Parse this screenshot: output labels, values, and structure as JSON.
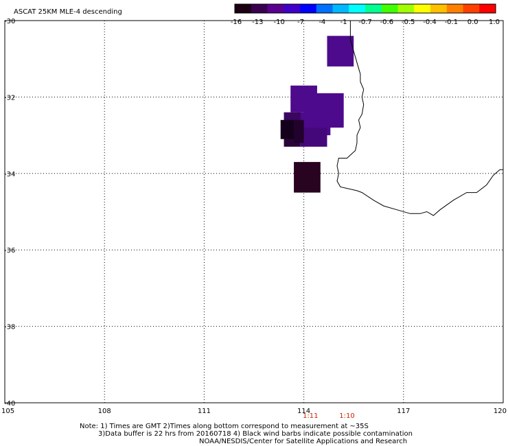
{
  "title": "ASCAT 25KM MLE-4 descending",
  "colorbar": {
    "labels": [
      "-16",
      "-13",
      "-10",
      "-7",
      "-4",
      "-1",
      "-0.7",
      "-0.6",
      "-0.5",
      "-0.4",
      "-0.1",
      "0.0",
      "1.0"
    ],
    "colors": [
      "#1a0010",
      "#3a0050",
      "#5a0090",
      "#4000c8",
      "#0000ff",
      "#0070ff",
      "#00b8ff",
      "#00ffff",
      "#00ff90",
      "#40ff00",
      "#a0ff00",
      "#ffff00",
      "#ffc000",
      "#ff8000",
      "#ff4000",
      "#ff0000"
    ]
  },
  "axes": {
    "lon_range": [
      105,
      120
    ],
    "lat_range": [
      -40,
      -30
    ],
    "x_ticks": [
      "105",
      "108",
      "111",
      "114",
      "117",
      "120"
    ],
    "x_tick_values": [
      105,
      108,
      111,
      114,
      117,
      120
    ],
    "y_ticks": [
      "-30",
      "-32",
      "-34",
      "-36",
      "-38",
      "-40"
    ],
    "y_tick_values": [
      -30,
      -32,
      -34,
      -36,
      -38,
      -40
    ],
    "grid": "dotted"
  },
  "pass_times": [
    {
      "lon": 114.2,
      "label": "1:11"
    },
    {
      "lon": 115.3,
      "label": "1:10"
    }
  ],
  "pass_time_color": "#cc2200",
  "cells": [
    {
      "lon0": 114.7,
      "lon1": 115.5,
      "lat0": -30.4,
      "lat1": -31.2,
      "color": "#4d0a8c"
    },
    {
      "lon0": 113.6,
      "lon1": 114.4,
      "lat0": -31.7,
      "lat1": -32.4,
      "color": "#4d0a8c"
    },
    {
      "lon0": 114.0,
      "lon1": 115.2,
      "lat0": -31.9,
      "lat1": -32.8,
      "color": "#4d0a8c"
    },
    {
      "lon0": 113.8,
      "lon1": 114.8,
      "lat0": -32.4,
      "lat1": -33.0,
      "color": "#4d0a8c"
    },
    {
      "lon0": 113.4,
      "lon1": 113.9,
      "lat0": -32.4,
      "lat1": -32.9,
      "color": "#3a0660"
    },
    {
      "lon0": 113.9,
      "lon1": 114.7,
      "lat0": -32.8,
      "lat1": -33.3,
      "color": "#45087a"
    },
    {
      "lon0": 113.4,
      "lon1": 113.9,
      "lat0": -32.9,
      "lat1": -33.3,
      "color": "#2a0438"
    },
    {
      "lon0": 113.3,
      "lon1": 113.7,
      "lat0": -32.6,
      "lat1": -33.1,
      "color": "#15001c"
    },
    {
      "lon0": 113.7,
      "lon1": 114.0,
      "lat0": -32.6,
      "lat1": -33.2,
      "color": "#22022c"
    },
    {
      "lon0": 113.7,
      "lon1": 114.5,
      "lat0": -33.7,
      "lat1": -34.5,
      "color": "#280420"
    }
  ],
  "coastline": [
    [
      115.4,
      -30.0
    ],
    [
      115.4,
      -30.5
    ],
    [
      115.5,
      -30.8
    ],
    [
      115.6,
      -31.1
    ],
    [
      115.7,
      -31.4
    ],
    [
      115.7,
      -31.6
    ],
    [
      115.8,
      -31.8
    ],
    [
      115.75,
      -32.0
    ],
    [
      115.8,
      -32.2
    ],
    [
      115.75,
      -32.45
    ],
    [
      115.65,
      -32.6
    ],
    [
      115.7,
      -32.8
    ],
    [
      115.6,
      -33.0
    ],
    [
      115.6,
      -33.2
    ],
    [
      115.55,
      -33.4
    ],
    [
      115.3,
      -33.6
    ],
    [
      115.05,
      -33.6
    ],
    [
      115.0,
      -33.8
    ],
    [
      115.05,
      -34.0
    ],
    [
      115.0,
      -34.2
    ],
    [
      115.1,
      -34.35
    ],
    [
      115.35,
      -34.4
    ],
    [
      115.6,
      -34.45
    ],
    [
      115.75,
      -34.5
    ],
    [
      116.1,
      -34.7
    ],
    [
      116.4,
      -34.85
    ],
    [
      116.8,
      -34.95
    ],
    [
      117.2,
      -35.05
    ],
    [
      117.5,
      -35.05
    ],
    [
      117.7,
      -35.0
    ],
    [
      117.9,
      -35.1
    ],
    [
      118.1,
      -34.95
    ],
    [
      118.5,
      -34.7
    ],
    [
      118.9,
      -34.5
    ],
    [
      119.2,
      -34.5
    ],
    [
      119.5,
      -34.3
    ],
    [
      119.7,
      -34.05
    ],
    [
      119.9,
      -33.9
    ],
    [
      120.0,
      -33.9
    ]
  ],
  "notes": [
    "Note: 1) Times are GMT 2)Times along bottom correspond to measurement at ~35S",
    "3)Data buffer is 22 hrs from 20160718 4) Black wind barbs indicate possible contamination",
    "NOAA/NESDIS/Center for Satellite Applications and Research"
  ]
}
